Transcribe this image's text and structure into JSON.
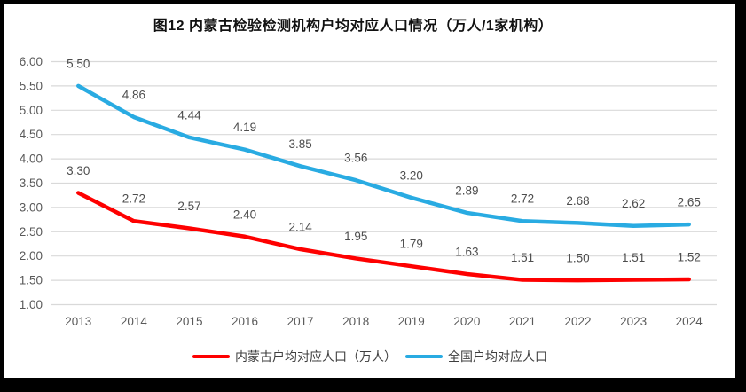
{
  "frame": {
    "background_color": "#000000",
    "chart_background_color": "#ffffff"
  },
  "chart_data": {
    "type": "line",
    "title": "图12  内蒙古检验检测机构户均对应人口情况（万人/1家机构）",
    "categories": [
      "2013",
      "2014",
      "2015",
      "2016",
      "2017",
      "2018",
      "2019",
      "2020",
      "2021",
      "2022",
      "2023",
      "2024"
    ],
    "series": [
      {
        "name": "内蒙古户均对应人口（万人）",
        "color": "#fe0000",
        "values": [
          3.3,
          2.72,
          2.57,
          2.4,
          2.14,
          1.95,
          1.79,
          1.63,
          1.51,
          1.5,
          1.51,
          1.52
        ]
      },
      {
        "name": "全国户均对应人口",
        "color": "#29abe2",
        "values": [
          5.5,
          4.86,
          4.44,
          4.19,
          3.85,
          3.56,
          3.2,
          2.89,
          2.72,
          2.68,
          2.62,
          2.65
        ]
      }
    ],
    "xlabel": "",
    "ylabel": "",
    "ylim": [
      1.0,
      6.0
    ],
    "yticks": [
      "1.00",
      "1.50",
      "2.00",
      "2.50",
      "3.00",
      "3.50",
      "4.00",
      "4.50",
      "5.00",
      "5.50",
      "6.00"
    ],
    "grid": true,
    "gridline_color": "#d9d9d9",
    "axis_text_color": "#595959",
    "data_label_color": "#4d4d4d",
    "data_labels": true,
    "legend_position": "bottom"
  }
}
